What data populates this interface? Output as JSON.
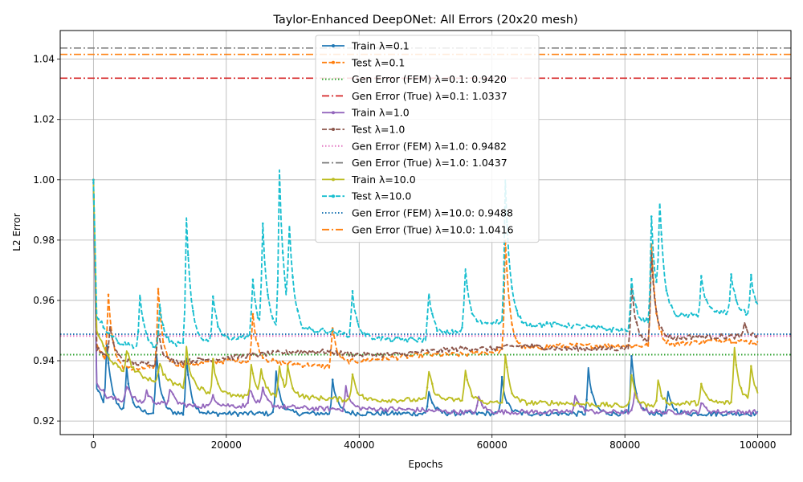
{
  "chart_data": {
    "type": "line",
    "title": "Taylor-Enhanced DeepONet: All Errors (20x20 mesh)",
    "xlabel": "Epochs",
    "ylabel": "L2 Error",
    "xlim": [
      -5000,
      105000
    ],
    "ylim": [
      0.9155,
      1.0495
    ],
    "xticks": [
      0,
      20000,
      40000,
      60000,
      80000,
      100000
    ],
    "xtick_labels": [
      "0",
      "20000",
      "40000",
      "60000",
      "80000",
      "100000"
    ],
    "yticks": [
      0.92,
      0.94,
      0.96,
      0.98,
      1.0,
      1.02,
      1.04
    ],
    "ytick_labels": [
      "0.92",
      "0.94",
      "0.96",
      "0.98",
      "1.00",
      "1.02",
      "1.04"
    ],
    "grid": true,
    "legend_position": "top-center",
    "series": [
      {
        "name": "Train λ=0.1",
        "kind": "curve",
        "color": "#1f77b4",
        "dash": "solid",
        "marker": true,
        "points": [
          [
            0,
            1.0
          ],
          [
            500,
            0.931
          ],
          [
            1500,
            0.926
          ],
          [
            2500,
            0.925
          ],
          [
            3500,
            0.924
          ],
          [
            5000,
            0.923
          ],
          [
            7000,
            0.923
          ],
          [
            10000,
            0.9225
          ],
          [
            15000,
            0.9225
          ],
          [
            20000,
            0.9225
          ],
          [
            25000,
            0.9225
          ],
          [
            30000,
            0.9225
          ],
          [
            40000,
            0.9225
          ],
          [
            50000,
            0.9225
          ],
          [
            60000,
            0.9225
          ],
          [
            70000,
            0.9225
          ],
          [
            80000,
            0.9225
          ],
          [
            90000,
            0.9225
          ],
          [
            100000,
            0.9225
          ]
        ],
        "spikes": [
          [
            2000,
            0.945
          ],
          [
            5000,
            0.937
          ],
          [
            9500,
            0.942
          ],
          [
            14000,
            0.941
          ],
          [
            27500,
            0.936
          ],
          [
            36000,
            0.934
          ],
          [
            50500,
            0.93
          ],
          [
            61500,
            0.934
          ],
          [
            74500,
            0.937
          ],
          [
            81000,
            0.941
          ],
          [
            86500,
            0.929
          ]
        ]
      },
      {
        "name": "Test λ=0.1",
        "kind": "curve",
        "color": "#ff7f0e",
        "dash": "dashed",
        "marker": true,
        "points": [
          [
            0,
            1.0
          ],
          [
            500,
            0.946
          ],
          [
            1500,
            0.941
          ],
          [
            3000,
            0.938
          ],
          [
            5000,
            0.937
          ],
          [
            10000,
            0.938
          ],
          [
            15000,
            0.939
          ],
          [
            20000,
            0.94
          ],
          [
            25000,
            0.94
          ],
          [
            30000,
            0.939
          ],
          [
            35000,
            0.938
          ],
          [
            40000,
            0.94
          ],
          [
            45000,
            0.941
          ],
          [
            50000,
            0.942
          ],
          [
            55000,
            0.942
          ],
          [
            60000,
            0.943
          ],
          [
            65000,
            0.944
          ],
          [
            70000,
            0.945
          ],
          [
            75000,
            0.945
          ],
          [
            80000,
            0.945
          ],
          [
            85000,
            0.945
          ],
          [
            90000,
            0.946
          ],
          [
            95000,
            0.947
          ],
          [
            100000,
            0.946
          ]
        ],
        "spikes": [
          [
            2200,
            0.964
          ],
          [
            9700,
            0.965
          ],
          [
            23800,
            0.96
          ],
          [
            35800,
            0.955
          ],
          [
            62000,
            0.98
          ],
          [
            84000,
            0.978
          ]
        ]
      },
      {
        "name": "Gen Error (FEM) λ=0.1: 0.9420",
        "kind": "hline",
        "value": 0.942,
        "color": "#2ca02c",
        "dash": "dotted"
      },
      {
        "name": "Gen Error (True) λ=0.1: 1.0337",
        "kind": "hline",
        "value": 1.0337,
        "color": "#d62728",
        "dash": "dashdot"
      },
      {
        "name": "Train λ=1.0",
        "kind": "curve",
        "color": "#9467bd",
        "dash": "solid",
        "marker": true,
        "points": [
          [
            0,
            0.999
          ],
          [
            500,
            0.933
          ],
          [
            2000,
            0.928
          ],
          [
            4000,
            0.927
          ],
          [
            8000,
            0.926
          ],
          [
            15000,
            0.925
          ],
          [
            25000,
            0.925
          ],
          [
            35000,
            0.924
          ],
          [
            45000,
            0.924
          ],
          [
            55000,
            0.923
          ],
          [
            65000,
            0.923
          ],
          [
            75000,
            0.923
          ],
          [
            85000,
            0.923
          ],
          [
            95000,
            0.923
          ],
          [
            100000,
            0.923
          ]
        ],
        "spikes": [
          [
            4800,
            0.934
          ],
          [
            8000,
            0.93
          ],
          [
            11500,
            0.931
          ],
          [
            17800,
            0.93
          ],
          [
            23500,
            0.931
          ],
          [
            25500,
            0.93
          ],
          [
            38000,
            0.931
          ],
          [
            58000,
            0.928
          ],
          [
            72500,
            0.929
          ],
          [
            81500,
            0.93
          ],
          [
            91500,
            0.926
          ]
        ]
      },
      {
        "name": "Test λ=1.0",
        "kind": "curve",
        "color": "#8c564b",
        "dash": "dashed",
        "marker": true,
        "points": [
          [
            0,
            1.0
          ],
          [
            500,
            0.944
          ],
          [
            2000,
            0.941
          ],
          [
            4000,
            0.94
          ],
          [
            7000,
            0.939
          ],
          [
            10000,
            0.939
          ],
          [
            15000,
            0.94
          ],
          [
            20000,
            0.941
          ],
          [
            25000,
            0.942
          ],
          [
            30000,
            0.943
          ],
          [
            35000,
            0.943
          ],
          [
            40000,
            0.942
          ],
          [
            45000,
            0.942
          ],
          [
            50000,
            0.943
          ],
          [
            55000,
            0.944
          ],
          [
            60000,
            0.944
          ],
          [
            65000,
            0.945
          ],
          [
            70000,
            0.944
          ],
          [
            75000,
            0.944
          ],
          [
            80000,
            0.944
          ],
          [
            85000,
            0.947
          ],
          [
            90000,
            0.948
          ],
          [
            95000,
            0.948
          ],
          [
            100000,
            0.948
          ]
        ],
        "spikes": [
          [
            2300,
            0.955
          ],
          [
            9600,
            0.953
          ],
          [
            81000,
            0.965
          ],
          [
            84000,
            0.975
          ],
          [
            98000,
            0.952
          ]
        ]
      },
      {
        "name": "Gen Error (FEM) λ=1.0: 0.9482",
        "kind": "hline",
        "value": 0.9482,
        "color": "#e377c2",
        "dash": "dotted"
      },
      {
        "name": "Gen Error (True) λ=1.0: 1.0437",
        "kind": "hline",
        "value": 1.0437,
        "color": "#7f7f7f",
        "dash": "dashdot"
      },
      {
        "name": "Train λ=10.0",
        "kind": "curve",
        "color": "#bcbd22",
        "dash": "solid",
        "marker": true,
        "points": [
          [
            0,
            1.0
          ],
          [
            500,
            0.95
          ],
          [
            2000,
            0.942
          ],
          [
            4000,
            0.937
          ],
          [
            7000,
            0.935
          ],
          [
            10000,
            0.933
          ],
          [
            15000,
            0.931
          ],
          [
            18000,
            0.929
          ],
          [
            22000,
            0.928
          ],
          [
            30000,
            0.928
          ],
          [
            40000,
            0.927
          ],
          [
            50000,
            0.927
          ],
          [
            55000,
            0.927
          ],
          [
            60000,
            0.926
          ],
          [
            70000,
            0.926
          ],
          [
            80000,
            0.925
          ],
          [
            85000,
            0.925
          ],
          [
            90000,
            0.926
          ],
          [
            95000,
            0.926
          ],
          [
            100000,
            0.927
          ]
        ],
        "spikes": [
          [
            5000,
            0.944
          ],
          [
            9800,
            0.942
          ],
          [
            14000,
            0.944
          ],
          [
            18000,
            0.94
          ],
          [
            23700,
            0.94
          ],
          [
            25200,
            0.937
          ],
          [
            28000,
            0.938
          ],
          [
            29200,
            0.937
          ],
          [
            39000,
            0.936
          ],
          [
            50300,
            0.94
          ],
          [
            55800,
            0.94
          ],
          [
            62000,
            0.942
          ],
          [
            81000,
            0.935
          ],
          [
            85000,
            0.933
          ],
          [
            91500,
            0.932
          ],
          [
            96300,
            0.95
          ],
          [
            99000,
            0.938
          ]
        ]
      },
      {
        "name": "Test λ=10.0",
        "kind": "curve",
        "color": "#17becf",
        "dash": "dashed",
        "marker": true,
        "points": [
          [
            0,
            1.0
          ],
          [
            500,
            0.955
          ],
          [
            2000,
            0.95
          ],
          [
            4000,
            0.946
          ],
          [
            8000,
            0.944
          ],
          [
            12000,
            0.945
          ],
          [
            16000,
            0.946
          ],
          [
            20000,
            0.947
          ],
          [
            25000,
            0.949
          ],
          [
            30000,
            0.95
          ],
          [
            35000,
            0.95
          ],
          [
            40000,
            0.948
          ],
          [
            45000,
            0.947
          ],
          [
            50000,
            0.947
          ],
          [
            55000,
            0.95
          ],
          [
            60000,
            0.953
          ],
          [
            65000,
            0.952
          ],
          [
            70000,
            0.952
          ],
          [
            75000,
            0.951
          ],
          [
            80000,
            0.95
          ],
          [
            85000,
            0.954
          ],
          [
            90000,
            0.955
          ],
          [
            95000,
            0.956
          ],
          [
            100000,
            0.955
          ]
        ],
        "spikes": [
          [
            7000,
            0.962
          ],
          [
            10000,
            0.958
          ],
          [
            14000,
            0.987
          ],
          [
            18000,
            0.962
          ],
          [
            23800,
            0.972
          ],
          [
            25300,
            0.994
          ],
          [
            28000,
            1.002
          ],
          [
            29300,
            0.988
          ],
          [
            38800,
            0.967
          ],
          [
            50300,
            0.968
          ],
          [
            55800,
            0.977
          ],
          [
            62000,
            1.0
          ],
          [
            81000,
            0.967
          ],
          [
            84000,
            0.987
          ],
          [
            85200,
            0.99
          ],
          [
            91500,
            0.968
          ],
          [
            96000,
            0.969
          ],
          [
            99000,
            0.968
          ]
        ]
      },
      {
        "name": "Gen Error (FEM) λ=10.0: 0.9488",
        "kind": "hline",
        "value": 0.9488,
        "color": "#1f77b4",
        "dash": "dotted"
      },
      {
        "name": "Gen Error (True) λ=10.0: 1.0416",
        "kind": "hline",
        "value": 1.0416,
        "color": "#ff7f0e",
        "dash": "dashdot"
      }
    ]
  }
}
